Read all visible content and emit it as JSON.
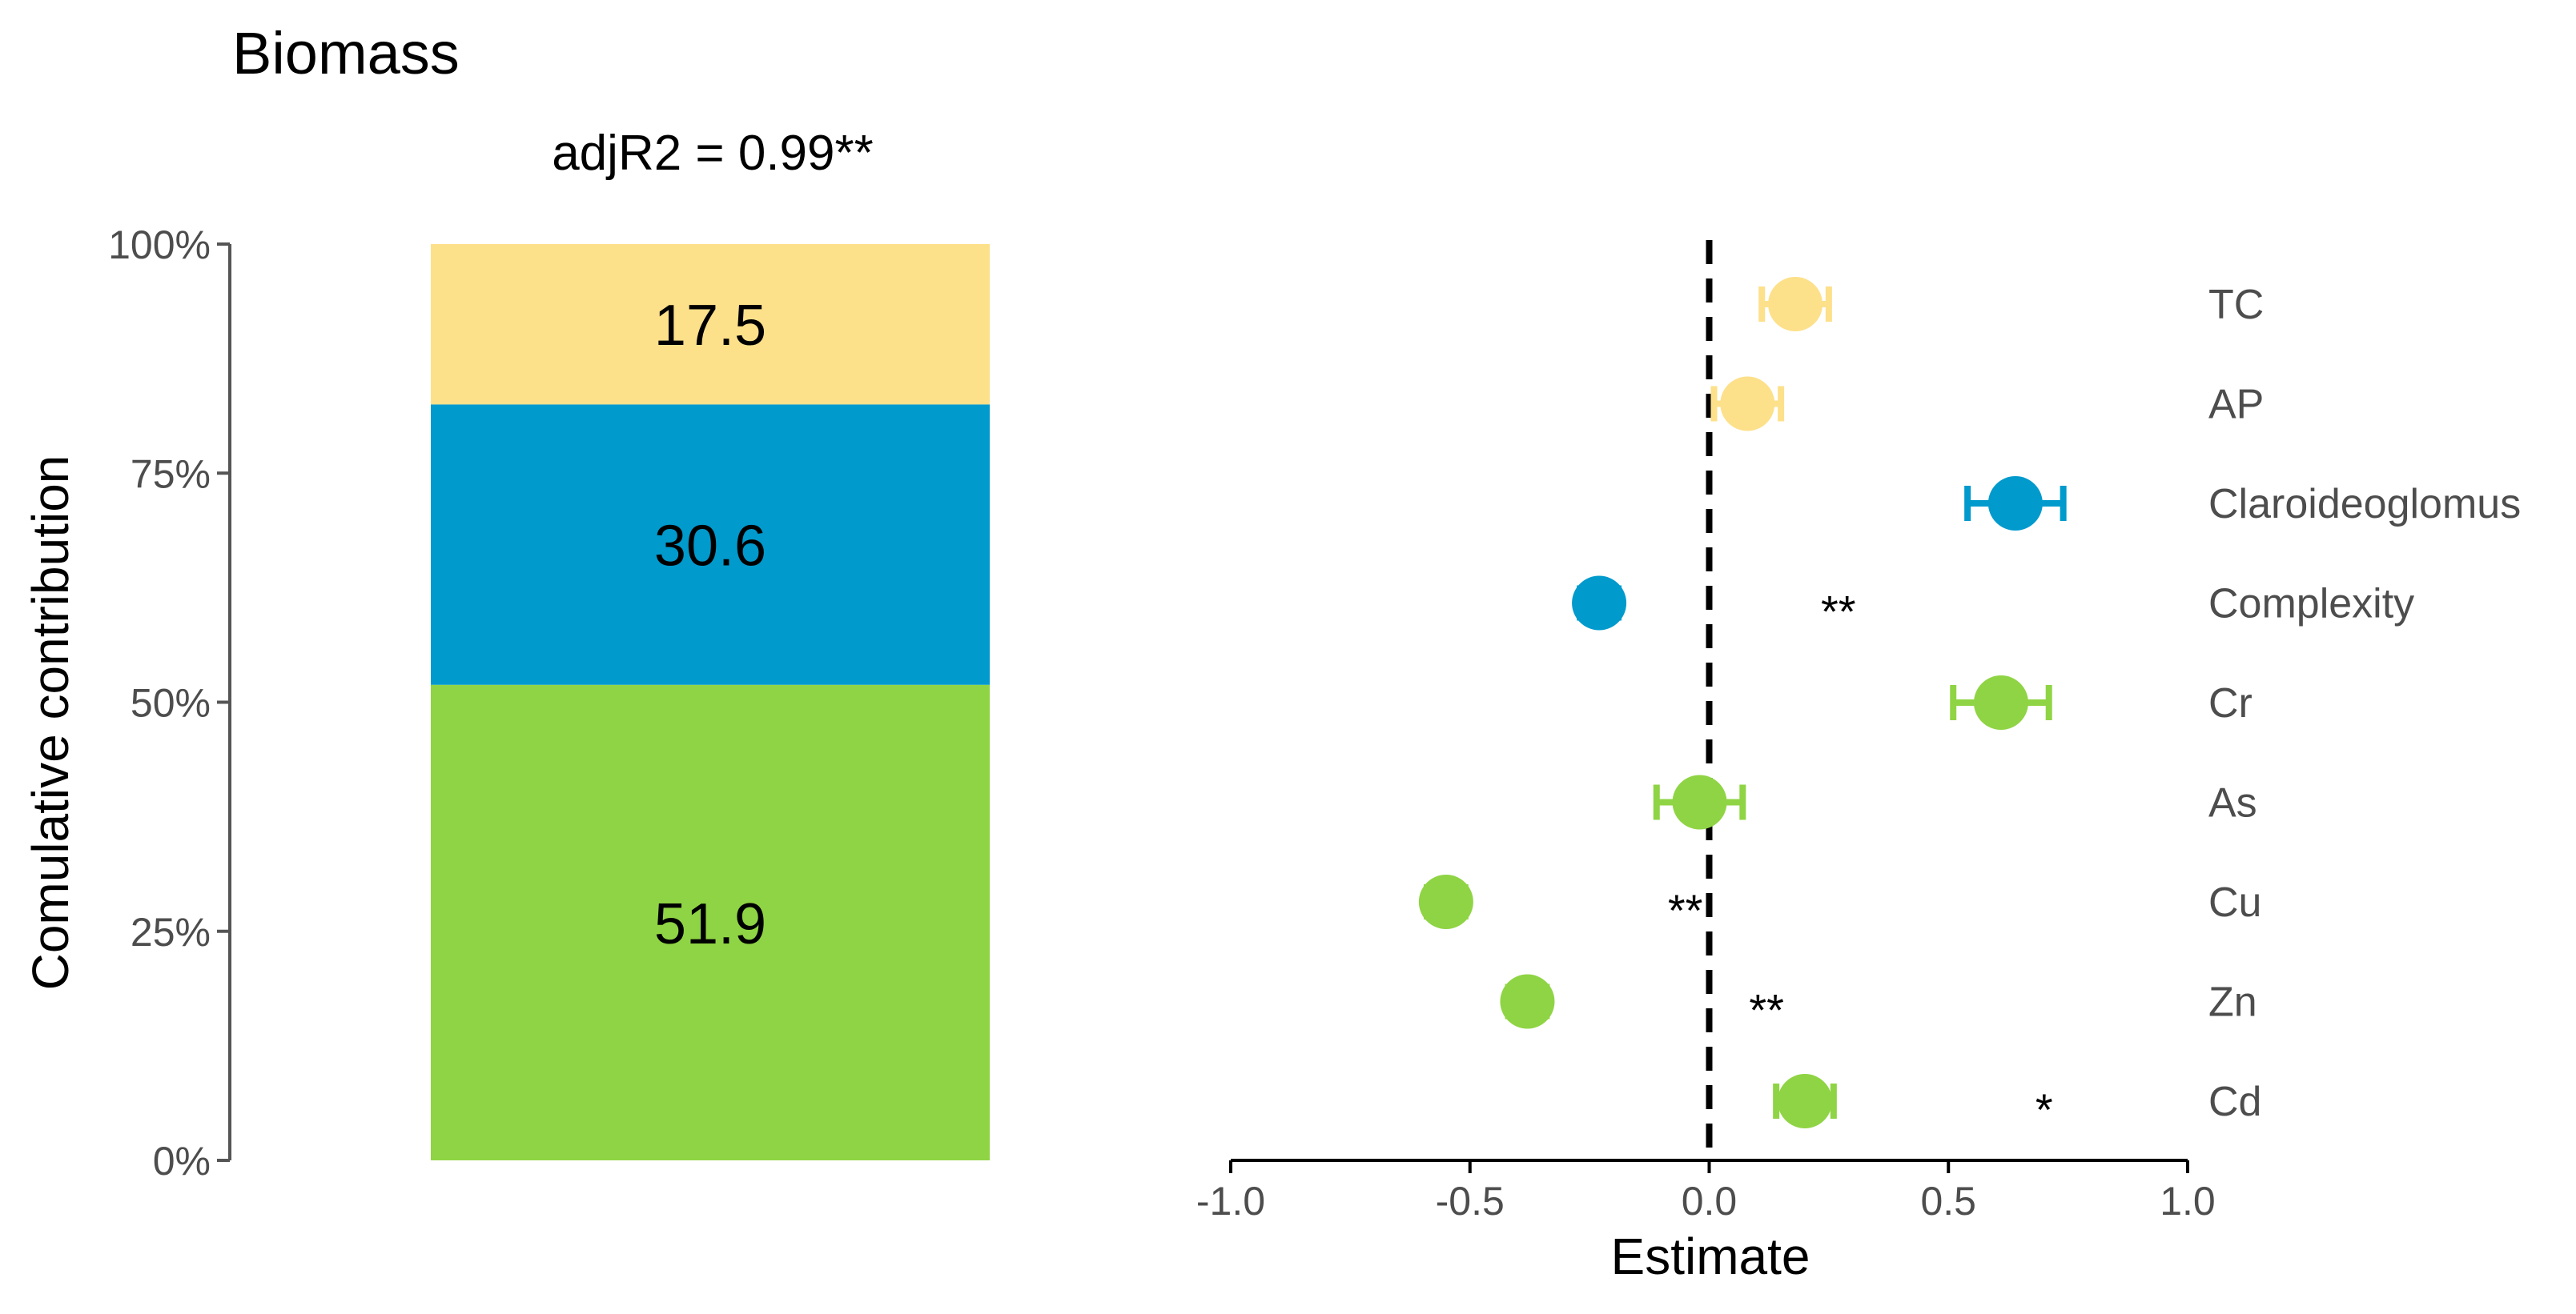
{
  "colors": {
    "yellow": "#FDE08A",
    "blue": "#009ACD",
    "green": "#8FD444",
    "axis": "#555555",
    "text": "#000000",
    "tick_text": "#4d4d4d"
  },
  "chart_data": [
    {
      "type": "bar",
      "title": "Biomass",
      "subtitle": "adjR2 = 0.99**",
      "ylabel": "Comulative contribution",
      "xlabel": "",
      "ylim": [
        0,
        100
      ],
      "yticks": [
        "0%",
        "25%",
        "50%",
        "75%",
        "100%"
      ],
      "yticks_values": [
        0,
        25,
        50,
        75,
        100
      ],
      "stacked": true,
      "segments": [
        {
          "name": "green",
          "value": 51.9,
          "label": "51.9",
          "color": "#8FD444"
        },
        {
          "name": "blue",
          "value": 30.6,
          "label": "30.6",
          "color": "#009ACD"
        },
        {
          "name": "yellow",
          "value": 17.5,
          "label": "17.5",
          "color": "#FDE08A"
        }
      ]
    },
    {
      "type": "scatter",
      "subtype": "forest",
      "xlabel": "Estimate",
      "xlim": [
        -1.0,
        1.0
      ],
      "xticks": [
        "-1.0",
        "-0.5",
        "0.0",
        "0.5",
        "1.0"
      ],
      "xticks_values": [
        -1.0,
        -0.5,
        0.0,
        0.5,
        1.0
      ],
      "reference_line": 0,
      "points": [
        {
          "label": "TC",
          "estimate": 0.18,
          "lo": 0.11,
          "hi": 0.25,
          "color": "#FDE08A",
          "sig": "",
          "sig_x": null
        },
        {
          "label": "AP",
          "estimate": 0.08,
          "lo": 0.01,
          "hi": 0.15,
          "color": "#FDE08A",
          "sig": "",
          "sig_x": null
        },
        {
          "label": "Claroideoglomus",
          "estimate": 0.64,
          "lo": 0.54,
          "hi": 0.74,
          "color": "#009ACD",
          "sig": "",
          "sig_x": null
        },
        {
          "label": "Complexity",
          "estimate": -0.23,
          "lo": -0.27,
          "hi": -0.19,
          "color": "#009ACD",
          "sig": "**",
          "sig_x": 0.27
        },
        {
          "label": "Cr",
          "estimate": 0.61,
          "lo": 0.51,
          "hi": 0.71,
          "color": "#8FD444",
          "sig": "",
          "sig_x": null
        },
        {
          "label": "As",
          "estimate": -0.02,
          "lo": -0.11,
          "hi": 0.07,
          "color": "#8FD444",
          "sig": "",
          "sig_x": null
        },
        {
          "label": "Cu",
          "estimate": -0.55,
          "lo": -0.59,
          "hi": -0.51,
          "color": "#8FD444",
          "sig": "**",
          "sig_x": -0.05
        },
        {
          "label": "Zn",
          "estimate": -0.38,
          "lo": -0.42,
          "hi": -0.34,
          "color": "#8FD444",
          "sig": "**",
          "sig_x": 0.12
        },
        {
          "label": "Cd",
          "estimate": 0.2,
          "lo": 0.14,
          "hi": 0.26,
          "color": "#8FD444",
          "sig": "*",
          "sig_x": 0.7
        }
      ]
    }
  ]
}
